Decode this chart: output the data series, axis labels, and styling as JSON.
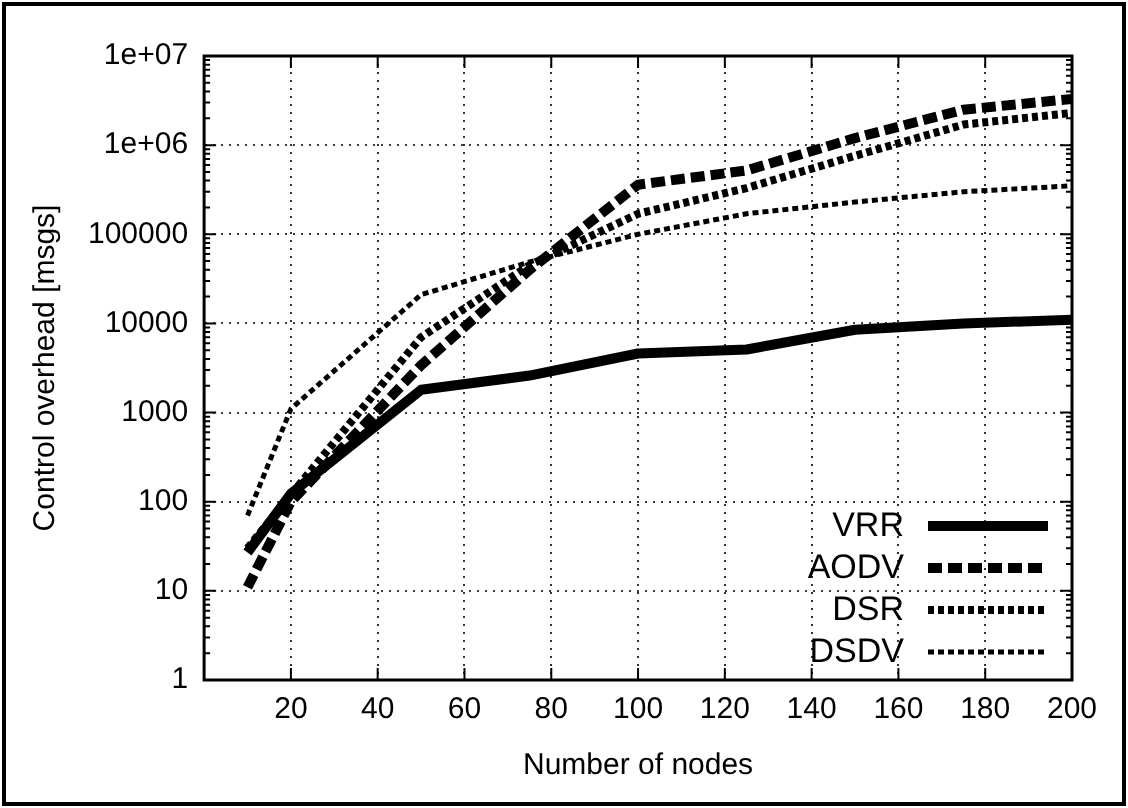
{
  "chart_data": {
    "type": "line",
    "xlabel": "Number of nodes",
    "ylabel": "Control overhead [msgs]",
    "xlim": [
      0,
      200
    ],
    "xticks": [
      20,
      40,
      60,
      80,
      100,
      120,
      140,
      160,
      180,
      200
    ],
    "ylim": [
      1,
      10000000
    ],
    "yticks": [
      1,
      10,
      100,
      1000,
      10000,
      100000,
      {
        "value": 1000000,
        "label": "1e+06"
      },
      {
        "value": 10000000,
        "label": "1e+07"
      }
    ],
    "log": "y",
    "grid": true,
    "legend": "bottom right",
    "marker": "none",
    "x": [
      10,
      20,
      50,
      75,
      100,
      125,
      150,
      175,
      200
    ],
    "series": [
      {
        "name": "VRR",
        "color": "#000000",
        "line_style": "solid",
        "values": [
          27,
          123,
          1800,
          2600,
          4600,
          5100,
          8500,
          10000,
          11000
        ]
      },
      {
        "name": "AODV",
        "color": "#000000",
        "line_style": "dashed",
        "values": [
          11,
          100,
          3400,
          40000,
          360000,
          520000,
          1200000,
          2500000,
          3300000
        ]
      },
      {
        "name": "DSR",
        "color": "#000000",
        "line_style": "dotted",
        "values": [
          30,
          120,
          7000,
          45000,
          170000,
          330000,
          760000,
          1700000,
          2300000
        ]
      },
      {
        "name": "DSDV",
        "color": "#000000",
        "line_style": "dotted",
        "values": [
          70,
          1100,
          21000,
          49000,
          100000,
          170000,
          230000,
          300000,
          350000
        ]
      }
    ]
  }
}
